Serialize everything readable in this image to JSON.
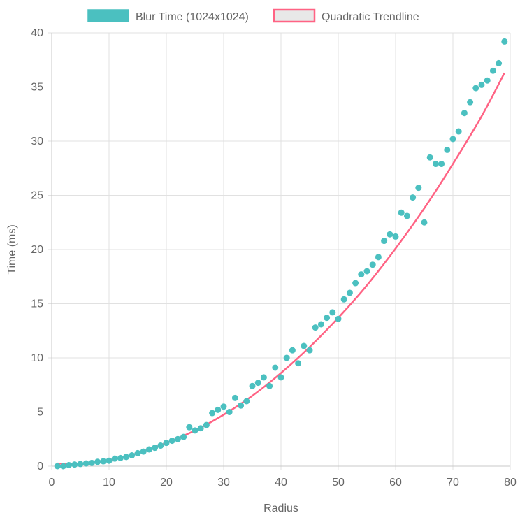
{
  "colors": {
    "scatter": "#4bc0c0",
    "trendline": "#ff6384",
    "grid": "#e1e1e1",
    "text": "#666666"
  },
  "chart_data": {
    "type": "scatter",
    "xlabel": "Radius",
    "ylabel": "Time (ms)",
    "xlim": [
      0,
      80
    ],
    "ylim": [
      0,
      40
    ],
    "x_ticks": [
      "0",
      "10",
      "20",
      "30",
      "40",
      "50",
      "60",
      "70",
      "80"
    ],
    "y_ticks": [
      "0",
      "5",
      "10",
      "15",
      "20",
      "25",
      "30",
      "35",
      "40"
    ],
    "grid": true,
    "legend_position": "top-center",
    "series": [
      {
        "name": "Blur Time (1024x1024)",
        "type": "scatter",
        "x": [
          1,
          2,
          3,
          4,
          5,
          6,
          7,
          8,
          9,
          10,
          11,
          12,
          13,
          14,
          15,
          16,
          17,
          18,
          19,
          20,
          21,
          22,
          23,
          24,
          25,
          26,
          27,
          28,
          29,
          30,
          31,
          32,
          33,
          34,
          35,
          36,
          37,
          38,
          39,
          40,
          41,
          42,
          43,
          44,
          45,
          46,
          47,
          48,
          49,
          50,
          51,
          52,
          53,
          54,
          55,
          56,
          57,
          58,
          59,
          60,
          61,
          62,
          63,
          64,
          65,
          66,
          67,
          68,
          69,
          70,
          71,
          72,
          73,
          74,
          75,
          76,
          77,
          78,
          79
        ],
        "y": [
          0.0,
          0.0,
          0.1,
          0.15,
          0.2,
          0.25,
          0.3,
          0.4,
          0.45,
          0.5,
          0.7,
          0.75,
          0.85,
          1.0,
          1.2,
          1.35,
          1.55,
          1.7,
          1.9,
          2.15,
          2.35,
          2.5,
          2.7,
          3.6,
          3.3,
          3.5,
          3.8,
          4.9,
          5.2,
          5.5,
          5.0,
          6.3,
          5.6,
          6.0,
          7.4,
          7.7,
          8.2,
          7.4,
          9.1,
          8.2,
          10.0,
          10.7,
          9.5,
          11.1,
          10.7,
          12.8,
          13.1,
          13.7,
          14.2,
          13.6,
          15.4,
          16.0,
          16.9,
          17.7,
          18.0,
          18.6,
          19.3,
          20.8,
          21.4,
          21.2,
          23.4,
          23.1,
          24.8,
          25.7,
          22.5,
          28.5,
          27.9,
          27.9,
          29.2,
          30.2,
          30.9,
          32.6,
          33.6,
          34.9,
          35.2,
          35.6,
          36.5,
          37.2,
          39.2
        ]
      },
      {
        "name": "Quadratic Trendline",
        "type": "line",
        "x": [
          1,
          5,
          10,
          15,
          20,
          25,
          30,
          35,
          40,
          45,
          50,
          55,
          60,
          65,
          70,
          75,
          79
        ],
        "y": [
          0.25,
          0.2,
          0.55,
          1.2,
          2.15,
          3.3,
          4.75,
          6.5,
          8.6,
          11.0,
          13.7,
          16.7,
          20.1,
          23.8,
          27.9,
          32.3,
          36.3
        ]
      }
    ]
  }
}
